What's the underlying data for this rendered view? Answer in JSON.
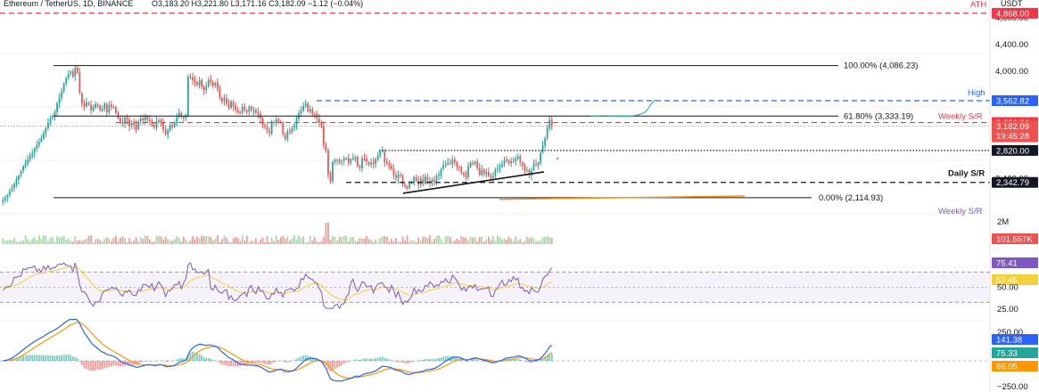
{
  "header": {
    "symbol": "Ethereum / TetherUS, 1D, BINANCE",
    "ohlc": "O3,183.20  H3,221.80  L3,171.16  C3,182.09  −1.12 (−0.04%)",
    "currency": "USDT"
  },
  "colors": {
    "up": "#26a69a",
    "down": "#ef5350",
    "ath_line": "#f23645",
    "resistance_red": "#f23645",
    "high_blue": "#2962ff",
    "rsi_line": "#7e57c2",
    "rsi_ma": "#f5d03d",
    "macd_line": "#2962ff",
    "signal_line": "#ff9800",
    "projection": "#22ab94",
    "trend_orange": "#f7931a"
  },
  "price_labels": {
    "ath_text": "ATH",
    "ath_value": "4,868.00",
    "fib_100": "100.00% (4,086.23)",
    "high_text": "High",
    "high_value": "3,562.82",
    "fib_618": "61.80% (3,333.19)",
    "weekly_sr": "Weekly S/R",
    "weekly_sr_value": "3,236.26",
    "current_price": "3,182.09",
    "countdown": "19:45:28",
    "level_2820": "2,820.00",
    "daily_sr": "Daily S/R",
    "daily_sr_value": "2,342.79",
    "fib_0": "0.00% (2,114.93)",
    "weekly_sr_low": "Weekly S/R"
  },
  "price_axis_ticks": [
    "4,800.00",
    "4,400.00",
    "4,000.00",
    "2,400.00"
  ],
  "volume": {
    "tick": "2M",
    "value": "101.557K"
  },
  "rsi": {
    "value": "75.41",
    "ma_value": "57.45",
    "ticks": [
      "50.00",
      "25.00"
    ]
  },
  "macd": {
    "macd_value": "141.38",
    "signal_value": "75.33",
    "hist_value": "66.05",
    "ticks": [
      "250.00",
      "−250.00"
    ]
  },
  "chart_data": {
    "type": "candlestick",
    "title": "Ethereum / TetherUS, 1D, BINANCE",
    "x": "daily bars",
    "close": [
      2080,
      2120,
      2150,
      2210,
      2260,
      2320,
      2390,
      2440,
      2510,
      2580,
      2630,
      2680,
      2740,
      2780,
      2850,
      2900,
      2950,
      3000,
      3080,
      3150,
      3230,
      3300,
      3330,
      3400,
      3520,
      3600,
      3700,
      3820,
      3900,
      3960,
      4000,
      3920,
      4050,
      3980,
      3680,
      3520,
      3480,
      3540,
      3500,
      3420,
      3460,
      3510,
      3480,
      3420,
      3440,
      3520,
      3390,
      3500,
      3470,
      3460,
      3380,
      3300,
      3250,
      3220,
      3310,
      3280,
      3180,
      3230,
      3200,
      3130,
      3240,
      3300,
      3270,
      3330,
      3280,
      3250,
      3200,
      3170,
      3250,
      3270,
      3240,
      3130,
      3060,
      3120,
      3200,
      3170,
      3230,
      3320,
      3380,
      3330,
      3300,
      3350,
      3920,
      3910,
      3870,
      3840,
      3800,
      3860,
      3770,
      3720,
      3780,
      3870,
      3840,
      3790,
      3830,
      3740,
      3610,
      3550,
      3600,
      3520,
      3460,
      3550,
      3480,
      3430,
      3390,
      3380,
      3470,
      3430,
      3400,
      3480,
      3420,
      3420,
      3380,
      3360,
      3300,
      3200,
      3170,
      3120,
      3080,
      3250,
      3230,
      3280,
      3260,
      3240,
      3060,
      2990,
      3100,
      3090,
      3150,
      3200,
      3300,
      3380,
      3420,
      3480,
      3520,
      3400,
      3440,
      3370,
      3360,
      3300,
      3230,
      3180,
      2900,
      2820,
      2460,
      2360,
      2650,
      2680,
      2680,
      2640,
      2660,
      2700,
      2700,
      2640,
      2690,
      2700,
      2720,
      2590,
      2560,
      2700,
      2690,
      2650,
      2610,
      2640,
      2620,
      2690,
      2740,
      2800,
      2810,
      2640,
      2620,
      2580,
      2550,
      2450,
      2410,
      2460,
      2450,
      2310,
      2280,
      2260,
      2330,
      2350,
      2420,
      2370,
      2310,
      2400,
      2330,
      2430,
      2370,
      2330,
      2380,
      2360,
      2440,
      2460,
      2540,
      2600,
      2610,
      2640,
      2620,
      2680,
      2640,
      2580,
      2570,
      2480,
      2450,
      2420,
      2580,
      2640,
      2620,
      2650,
      2560,
      2460,
      2530,
      2470,
      2500,
      2440,
      2410,
      2440,
      2540,
      2550,
      2580,
      2610,
      2680,
      2670,
      2630,
      2660,
      2650,
      2700,
      2730,
      2640,
      2590,
      2520,
      2530,
      2450,
      2520,
      2610,
      2600,
      2640,
      2780,
      2900,
      3000,
      3160,
      3280,
      3182.09
    ],
    "ylim": [
      1900,
      4880
    ],
    "indicators": [
      "Volume",
      "RSI 14",
      "MACD 12 26"
    ]
  }
}
